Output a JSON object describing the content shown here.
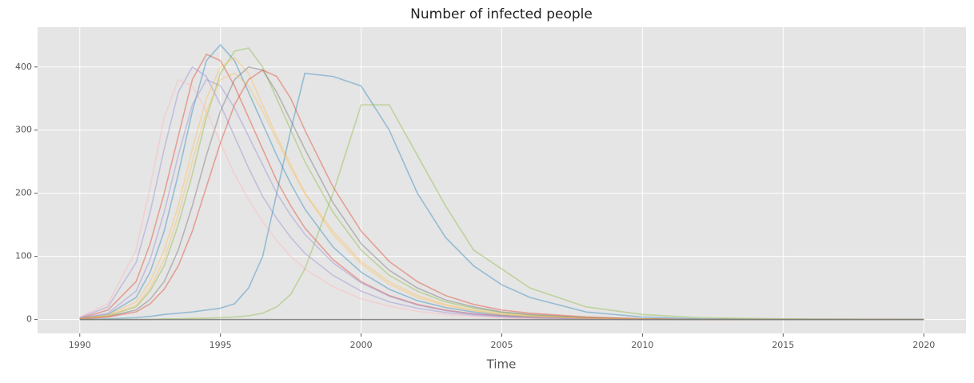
{
  "chart_data": {
    "type": "line",
    "title": "Number of infected people",
    "xlabel": "Time",
    "x": [
      1990,
      1991,
      1992,
      1992.5,
      1993,
      1993.5,
      1994,
      1994.5,
      1995,
      1995.5,
      1996,
      1996.5,
      1997,
      1997.5,
      1998,
      1999,
      2000,
      2001,
      2002,
      2003,
      2004,
      2005,
      2006,
      2008,
      2010,
      2012,
      2015,
      2020
    ],
    "series": [
      {
        "color": "#E24A33",
        "values": [
          2,
          15,
          60,
          120,
          200,
          290,
          380,
          420,
          410,
          370,
          320,
          270,
          220,
          180,
          145,
          95,
          60,
          38,
          24,
          15,
          9,
          6,
          4,
          2,
          1,
          0,
          0,
          0
        ]
      },
      {
        "color": "#348ABD",
        "values": [
          2,
          8,
          35,
          75,
          140,
          230,
          330,
          410,
          435,
          410,
          360,
          310,
          260,
          215,
          175,
          115,
          75,
          48,
          30,
          19,
          12,
          7,
          5,
          2,
          1,
          0,
          0,
          0
        ]
      },
      {
        "color": "#8EBA42",
        "values": [
          2,
          6,
          20,
          45,
          85,
          150,
          230,
          320,
          390,
          425,
          430,
          400,
          350,
          300,
          250,
          170,
          110,
          70,
          45,
          28,
          18,
          11,
          7,
          3,
          1,
          0,
          0,
          0
        ]
      },
      {
        "color": "#988ED5",
        "values": [
          3,
          20,
          90,
          170,
          270,
          360,
          400,
          385,
          340,
          290,
          240,
          195,
          160,
          130,
          105,
          70,
          45,
          28,
          18,
          11,
          7,
          4,
          3,
          1,
          0,
          0,
          0,
          0
        ]
      },
      {
        "color": "#FBC15E",
        "values": [
          2,
          7,
          28,
          60,
          110,
          180,
          270,
          350,
          400,
          415,
          390,
          340,
          290,
          245,
          200,
          135,
          88,
          56,
          35,
          22,
          14,
          8,
          5,
          2,
          1,
          0,
          0,
          0
        ]
      },
      {
        "color": "#777777",
        "values": [
          1,
          5,
          15,
          32,
          60,
          110,
          180,
          260,
          330,
          380,
          400,
          395,
          360,
          315,
          270,
          185,
          120,
          78,
          50,
          31,
          20,
          12,
          8,
          3,
          1,
          0,
          0,
          0
        ]
      },
      {
        "color": "#FFB5B8",
        "values": [
          4,
          25,
          110,
          210,
          320,
          380,
          370,
          330,
          280,
          230,
          190,
          155,
          125,
          100,
          80,
          52,
          33,
          21,
          13,
          8,
          5,
          3,
          2,
          1,
          0,
          0,
          0,
          0
        ]
      },
      {
        "color": "#E24A33",
        "values": [
          1,
          4,
          12,
          25,
          48,
          85,
          140,
          210,
          280,
          340,
          380,
          395,
          385,
          350,
          300,
          210,
          140,
          92,
          60,
          38,
          24,
          15,
          10,
          4,
          1,
          0,
          0,
          0
        ]
      },
      {
        "color": "#348ABD",
        "values": [
          0,
          1,
          3,
          5,
          8,
          10,
          12,
          15,
          18,
          25,
          50,
          100,
          200,
          300,
          390,
          385,
          370,
          300,
          200,
          130,
          85,
          55,
          35,
          12,
          4,
          1,
          0,
          0
        ]
      },
      {
        "color": "#8EBA42",
        "values": [
          0,
          0,
          0,
          0,
          1,
          1,
          2,
          2,
          3,
          4,
          6,
          10,
          20,
          40,
          80,
          200,
          340,
          340,
          260,
          180,
          110,
          80,
          50,
          20,
          8,
          3,
          1,
          0
        ]
      },
      {
        "color": "#988ED5",
        "values": [
          2,
          10,
          45,
          95,
          170,
          260,
          340,
          380,
          370,
          335,
          290,
          245,
          200,
          165,
          135,
          90,
          58,
          37,
          23,
          14,
          9,
          5,
          3,
          1,
          0,
          0,
          0,
          0
        ]
      },
      {
        "color": "#FBC15E",
        "values": [
          1,
          6,
          22,
          50,
          95,
          165,
          250,
          330,
          380,
          390,
          370,
          330,
          285,
          240,
          200,
          140,
          92,
          60,
          38,
          24,
          15,
          9,
          6,
          2,
          1,
          0,
          0,
          0
        ]
      },
      {
        "color": "#777777",
        "values": [
          0,
          0,
          0,
          0,
          0,
          0,
          0,
          0,
          0,
          0,
          0,
          0,
          0,
          0,
          0,
          0,
          0,
          0,
          0,
          0,
          0,
          0,
          0,
          0,
          0,
          0,
          0,
          0
        ]
      }
    ],
    "xlim": [
      1988.5,
      2021.5
    ],
    "xticks": [
      1990,
      1995,
      2000,
      2005,
      2010,
      2015,
      2020
    ],
    "ylim": [
      -22,
      463
    ],
    "yticks": [
      0,
      100,
      200,
      300,
      400
    ],
    "grid": true
  }
}
